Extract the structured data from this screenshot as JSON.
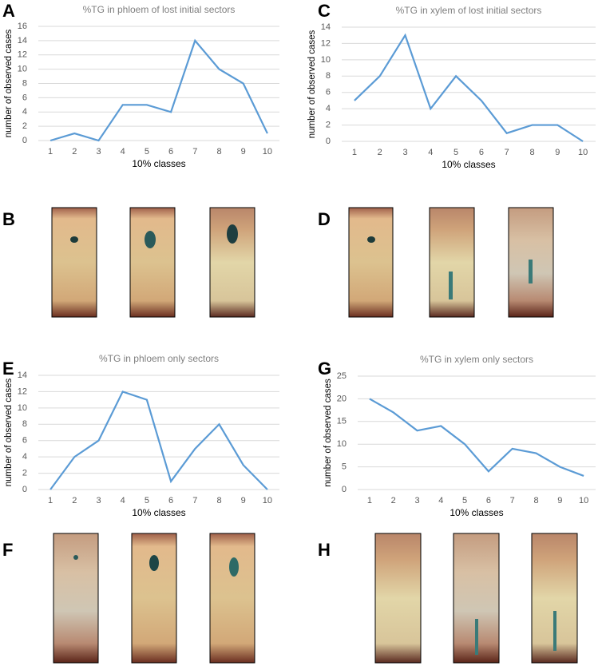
{
  "chart_data": [
    {
      "type": "line",
      "panel": "A",
      "title": "%TG in phloem of lost initial sectors",
      "x_label": "10% classes",
      "y_label": "number of observed cases",
      "categories": [
        "1",
        "2",
        "3",
        "4",
        "5",
        "6",
        "7",
        "8",
        "9",
        "10"
      ],
      "values": [
        0,
        1,
        0,
        5,
        5,
        4,
        14,
        10,
        8,
        1
      ],
      "color": "#5b9bd5",
      "ylim": [
        0,
        16
      ],
      "yticks": [
        0,
        2,
        4,
        6,
        8,
        10,
        12,
        14,
        16
      ],
      "grid": true
    },
    {
      "type": "line",
      "panel": "C",
      "title": "%TG in xylem of lost initial sectors",
      "x_label": "10% classes",
      "y_label": "number of observed cases",
      "categories": [
        "1",
        "2",
        "3",
        "4",
        "5",
        "6",
        "7",
        "8",
        "9",
        "10"
      ],
      "values": [
        5,
        8,
        13,
        4,
        8,
        5,
        1,
        2,
        2,
        0
      ],
      "color": "#5b9bd5",
      "ylim": [
        0,
        14
      ],
      "yticks": [
        0,
        2,
        4,
        6,
        8,
        10,
        12,
        14
      ],
      "grid": true
    },
    {
      "type": "line",
      "panel": "E",
      "title": "%TG in phloem only sectors",
      "x_label": "10% classes",
      "y_label": "number of observed cases",
      "categories": [
        "1",
        "2",
        "3",
        "4",
        "5",
        "6",
        "7",
        "8",
        "9",
        "10"
      ],
      "values": [
        0,
        4,
        6,
        12,
        11,
        1,
        5,
        8,
        3,
        0
      ],
      "color": "#5b9bd5",
      "ylim": [
        0,
        14
      ],
      "yticks": [
        0,
        2,
        4,
        6,
        8,
        10,
        12,
        14
      ],
      "grid": true
    },
    {
      "type": "line",
      "panel": "G",
      "title": "%TG in xylem only sectors",
      "x_label": "10% classes",
      "y_label": "number of observed cases",
      "categories": [
        "1",
        "2",
        "3",
        "4",
        "5",
        "6",
        "7",
        "8",
        "9",
        "10"
      ],
      "values": [
        20,
        17,
        13,
        14,
        10,
        4,
        9,
        8,
        5,
        3
      ],
      "color": "#5b9bd5",
      "ylim": [
        0,
        25
      ],
      "yticks": [
        0,
        5,
        10,
        15,
        20,
        25
      ],
      "grid": true
    }
  ],
  "image_panels": [
    "B",
    "D",
    "F",
    "H"
  ]
}
